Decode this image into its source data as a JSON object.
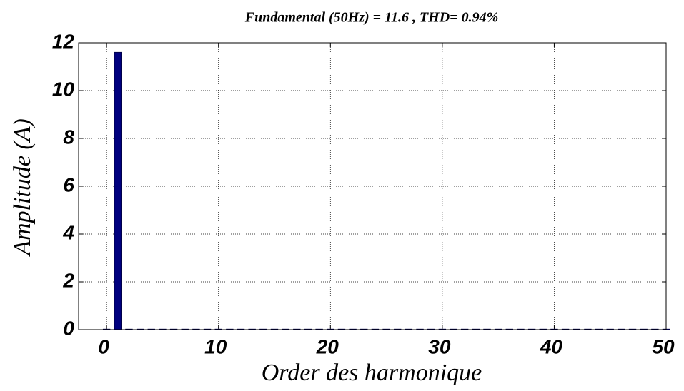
{
  "chart_data": {
    "type": "bar",
    "title": "Fundamental (50Hz) = 11.6 , THD= 0.94%",
    "xlabel": "Order des harmonique",
    "ylabel": "Amplitude (A)",
    "x": [
      0,
      1,
      2,
      3,
      4,
      5,
      6,
      7,
      8,
      9,
      10,
      11,
      12,
      13,
      14,
      15,
      16,
      17,
      18,
      19,
      20,
      21,
      22,
      23,
      24,
      25,
      26,
      27,
      28,
      29,
      30,
      31,
      32,
      33,
      34,
      35,
      36,
      37,
      38,
      39,
      40,
      41,
      42,
      43,
      44,
      45,
      46,
      47,
      48,
      49,
      50
    ],
    "values": [
      0.02,
      11.6,
      0.02,
      0.02,
      0.02,
      0.02,
      0.02,
      0.02,
      0.02,
      0.02,
      0.02,
      0.02,
      0.02,
      0.02,
      0.02,
      0.02,
      0.02,
      0.02,
      0.02,
      0.02,
      0.02,
      0.02,
      0.02,
      0.02,
      0.02,
      0.02,
      0.02,
      0.02,
      0.02,
      0.02,
      0.02,
      0.02,
      0.02,
      0.02,
      0.02,
      0.02,
      0.02,
      0.02,
      0.02,
      0.02,
      0.02,
      0.02,
      0.02,
      0.02,
      0.02,
      0.02,
      0.02,
      0.02,
      0.02,
      0.02,
      0.02
    ],
    "color": "#00007f",
    "xlim": [
      -2.5,
      50
    ],
    "xticks": [
      0,
      10,
      20,
      30,
      40,
      50
    ],
    "ylim": [
      0,
      12
    ],
    "yticks": [
      0,
      2,
      4,
      6,
      8,
      10,
      12
    ],
    "grid": true
  }
}
